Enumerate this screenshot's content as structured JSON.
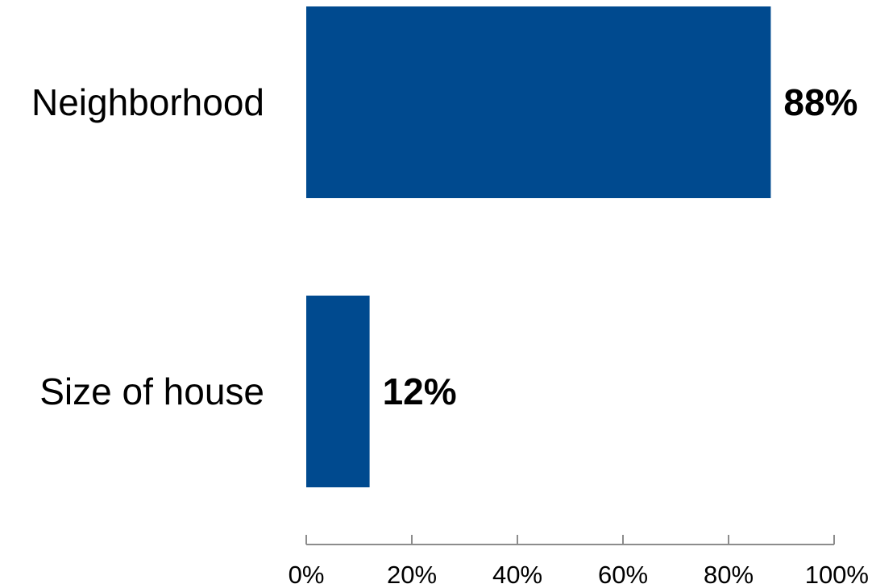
{
  "chart_data": {
    "type": "bar",
    "orientation": "horizontal",
    "categories": [
      "Neighborhood",
      "Size of house"
    ],
    "values": [
      88,
      12
    ],
    "value_labels": [
      "88%",
      "12%"
    ],
    "xlim": [
      0,
      100
    ],
    "xticks": [
      "0%",
      "20%",
      "40%",
      "60%",
      "80%",
      "100%"
    ],
    "bar_color": "#004A8F",
    "grid": false,
    "legend": "none"
  }
}
